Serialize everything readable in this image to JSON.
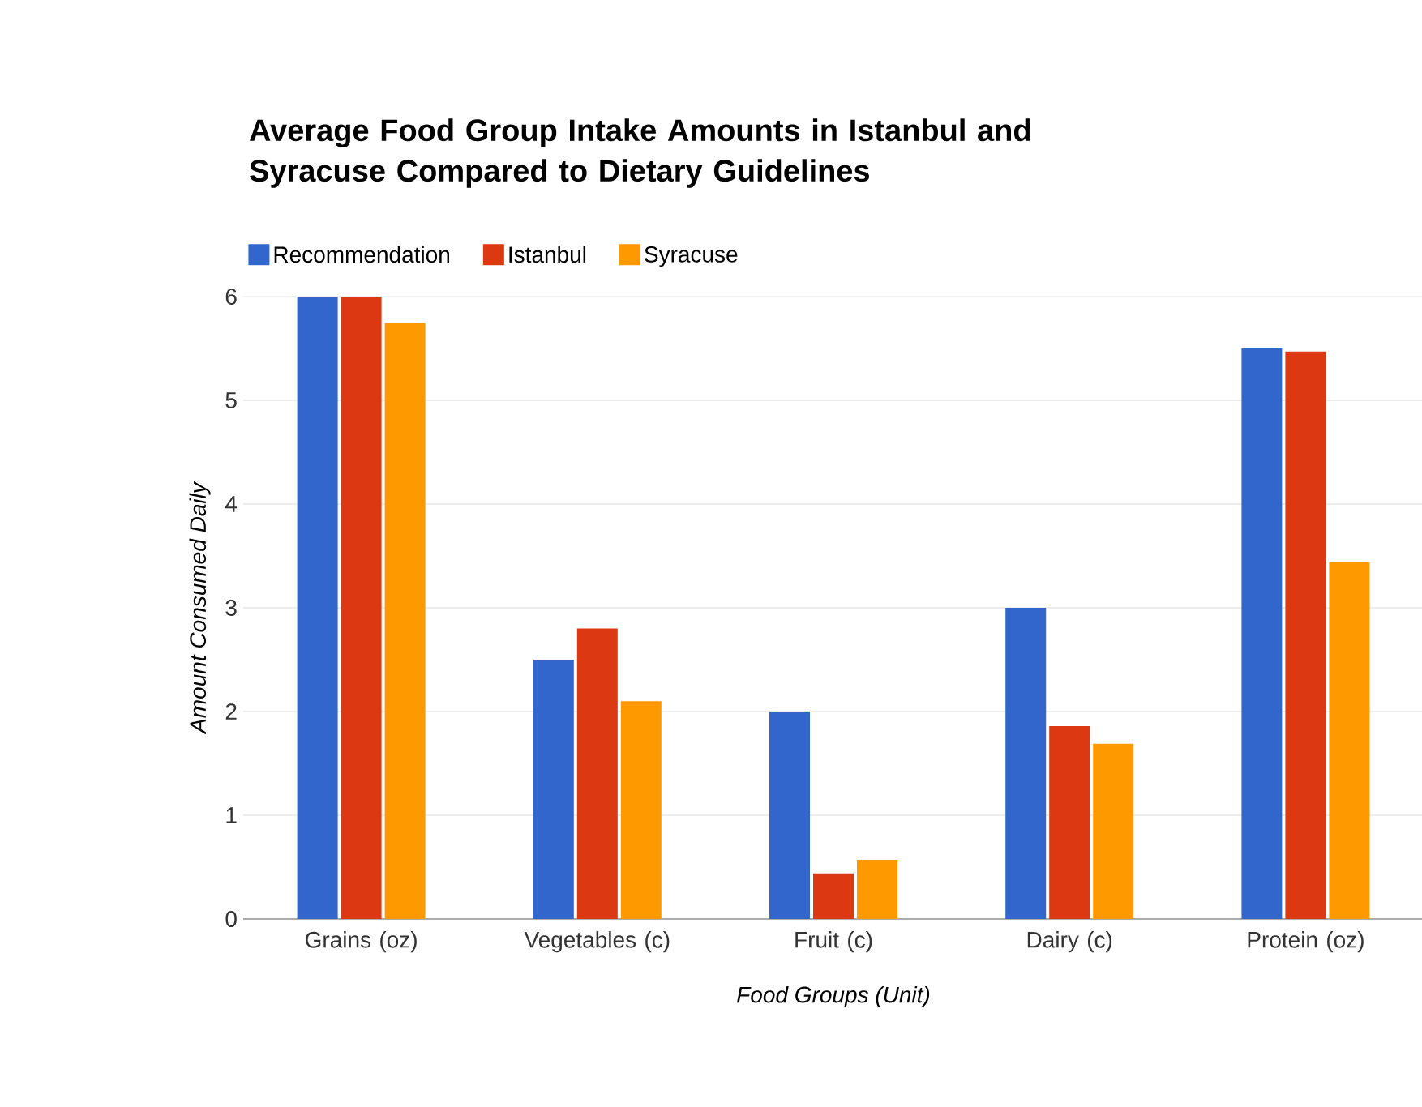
{
  "chart_data": {
    "type": "bar",
    "title": "Average Food Group Intake Amounts in Istanbul and Syracuse Compared to Dietary Guidelines",
    "xlabel": "Food Groups (Unit)",
    "ylabel": "Amount Consumed Daily",
    "categories": [
      "Grains (oz)",
      "Vegetables (c)",
      "Fruit (c)",
      "Dairy (c)",
      "Protein (oz)"
    ],
    "series": [
      {
        "name": "Recommendation",
        "color": "#3366cc",
        "values": [
          6,
          2.5,
          2,
          3,
          5.5
        ]
      },
      {
        "name": "Istanbul",
        "color": "#dc3912",
        "values": [
          6,
          2.8,
          0.44,
          1.86,
          5.47
        ]
      },
      {
        "name": "Syracuse",
        "color": "#ff9900",
        "values": [
          5.75,
          2.1,
          0.57,
          1.69,
          3.44
        ]
      }
    ],
    "ylim": [
      0,
      6
    ],
    "yticks": [
      0,
      1,
      2,
      3,
      4,
      5,
      6
    ],
    "grid": "y",
    "legend": "top left"
  }
}
